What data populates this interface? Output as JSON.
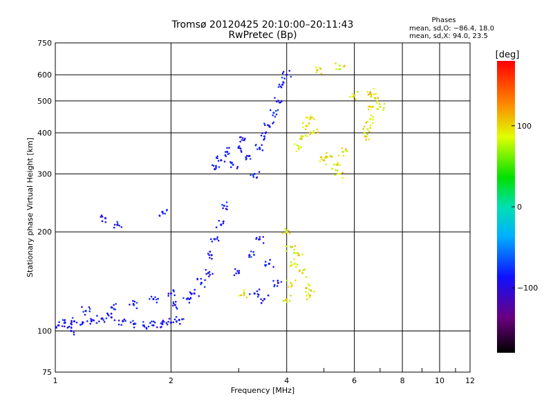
{
  "header": {
    "title_line1": "Tromsø 20120425 20:10:00–20:11:43",
    "title_line2": "RwPretec (Bp)"
  },
  "phases_box": {
    "title": "Phases",
    "line1": "mean, sd,O: −86.4, 18.0",
    "line2": "mean, sd,X:  94.0, 23.5"
  },
  "colorbar": {
    "title": "[deg]",
    "tick_labels": [
      "100",
      "0",
      "−100"
    ],
    "tick_values": [
      100,
      0,
      -100
    ],
    "range": [
      -180,
      180
    ]
  },
  "chart_data": {
    "type": "scatter",
    "title": "Tromsø 20120425 20:10:00–20:11:43",
    "subtitle": "RwPretec (Bp)",
    "xlabel": "Frequency [MHz]",
    "ylabel": "Stationary phase Virtual Height [km]",
    "x_scale": "log",
    "y_scale": "log",
    "xlim": [
      1,
      12
    ],
    "ylim": [
      75,
      750
    ],
    "x_tick_labels": [
      "1",
      "2",
      "4",
      "6",
      "8",
      "10",
      "12"
    ],
    "x_tick_values": [
      1,
      2,
      4,
      6,
      8,
      10,
      12
    ],
    "y_tick_labels": [
      "75",
      "100",
      "200",
      "300",
      "400",
      "500",
      "600",
      "750"
    ],
    "y_tick_values": [
      75,
      100,
      200,
      300,
      400,
      500,
      600,
      750
    ],
    "grid": true,
    "color_variable": "phase [deg]",
    "series": [
      {
        "name": "O",
        "color_mean": -86.4,
        "color_sd": 18.0,
        "points": [
          [
            1.02,
            104
          ],
          [
            1.06,
            106
          ],
          [
            1.12,
            107
          ],
          [
            1.18,
            106
          ],
          [
            1.25,
            108
          ],
          [
            1.32,
            109
          ],
          [
            1.4,
            110
          ],
          [
            1.5,
            107
          ],
          [
            1.6,
            105
          ],
          [
            1.7,
            104
          ],
          [
            1.8,
            104
          ],
          [
            1.9,
            105
          ],
          [
            2.0,
            106
          ],
          [
            2.1,
            108
          ],
          [
            2.05,
            120
          ],
          [
            2.2,
            125
          ],
          [
            2.3,
            130
          ],
          [
            2.4,
            140
          ],
          [
            2.5,
            150
          ],
          [
            2.55,
            170
          ],
          [
            2.6,
            190
          ],
          [
            2.7,
            210
          ],
          [
            2.75,
            240
          ],
          [
            2.6,
            310
          ],
          [
            2.7,
            330
          ],
          [
            2.8,
            350
          ],
          [
            2.9,
            320
          ],
          [
            3.0,
            360
          ],
          [
            3.1,
            380
          ],
          [
            3.2,
            340
          ],
          [
            3.3,
            300
          ],
          [
            3.4,
            360
          ],
          [
            3.5,
            390
          ],
          [
            3.6,
            420
          ],
          [
            3.7,
            460
          ],
          [
            3.8,
            500
          ],
          [
            3.9,
            560
          ],
          [
            4.0,
            600
          ],
          [
            3.0,
            150
          ],
          [
            3.2,
            170
          ],
          [
            3.4,
            190
          ],
          [
            3.6,
            160
          ],
          [
            3.8,
            140
          ],
          [
            3.3,
            130
          ],
          [
            3.5,
            125
          ],
          [
            1.2,
            115
          ],
          [
            1.4,
            118
          ],
          [
            1.6,
            120
          ],
          [
            1.8,
            125
          ],
          [
            2.0,
            130
          ],
          [
            1.45,
            210
          ],
          [
            1.35,
            220
          ],
          [
            1.9,
            230
          ],
          [
            1.1,
            100
          ]
        ]
      },
      {
        "name": "X",
        "color_mean": 94.0,
        "color_sd": 23.5,
        "points": [
          [
            3.1,
            130
          ],
          [
            4.0,
            125
          ],
          [
            4.1,
            140
          ],
          [
            4.2,
            160
          ],
          [
            4.3,
            170
          ],
          [
            4.4,
            150
          ],
          [
            4.5,
            135
          ],
          [
            4.6,
            128
          ],
          [
            4.0,
            200
          ],
          [
            4.1,
            180
          ],
          [
            4.3,
            360
          ],
          [
            4.4,
            390
          ],
          [
            4.5,
            420
          ],
          [
            4.6,
            440
          ],
          [
            4.7,
            400
          ],
          [
            5.0,
            330
          ],
          [
            5.2,
            340
          ],
          [
            5.4,
            320
          ],
          [
            5.5,
            300
          ],
          [
            5.6,
            350
          ],
          [
            6.4,
            390
          ],
          [
            6.5,
            410
          ],
          [
            6.6,
            440
          ],
          [
            6.7,
            480
          ],
          [
            6.8,
            510
          ],
          [
            6.6,
            530
          ],
          [
            4.8,
            620
          ],
          [
            5.5,
            640
          ],
          [
            6.0,
            520
          ],
          [
            7.0,
            480
          ]
        ]
      }
    ]
  }
}
